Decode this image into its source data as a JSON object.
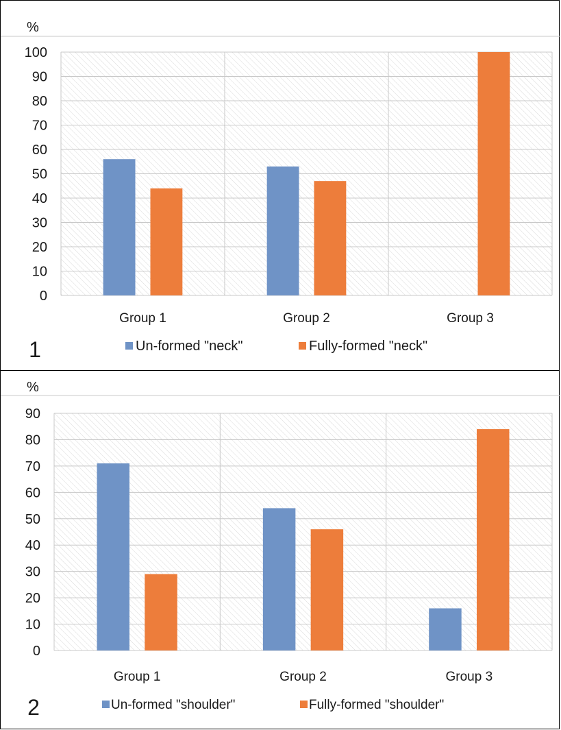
{
  "chart_data": [
    {
      "type": "bar",
      "panel_label": "1",
      "ylabel": "%",
      "categories": [
        "Group 1",
        "Group 2",
        "Group 3"
      ],
      "series": [
        {
          "name": "Un-formed \"neck\"",
          "values": [
            56,
            53,
            0
          ]
        },
        {
          "name": "Fully-formed \"neck\"",
          "values": [
            44,
            47,
            100
          ]
        }
      ],
      "ylim": [
        0,
        100
      ],
      "yticks": [
        0,
        10,
        20,
        30,
        40,
        50,
        60,
        70,
        80,
        90,
        100
      ],
      "grid": true,
      "legend_position": "bottom"
    },
    {
      "type": "bar",
      "panel_label": "2",
      "ylabel": "%",
      "categories": [
        "Group 1",
        "Group 2",
        "Group 3"
      ],
      "series": [
        {
          "name": "Un-formed \"shoulder\"",
          "values": [
            71,
            54,
            16
          ]
        },
        {
          "name": "Fully-formed \"shoulder\"",
          "values": [
            29,
            46,
            84
          ]
        }
      ],
      "ylim": [
        0,
        90
      ],
      "yticks": [
        0,
        10,
        20,
        30,
        40,
        50,
        60,
        70,
        80,
        90
      ],
      "grid": true,
      "legend_position": "bottom"
    }
  ],
  "colors": {
    "series_1": "#6f93c6",
    "series_2": "#ed7d3b",
    "grid": "#c8c8c8",
    "hatch": "#d9d9d9"
  }
}
